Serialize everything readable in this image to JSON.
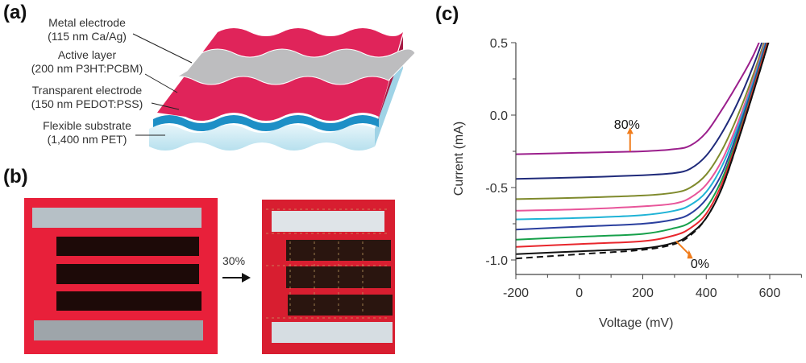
{
  "panels": {
    "a": {
      "label": "(a)",
      "layers": [
        {
          "name": "Metal electrode",
          "detail": "(115 nm Ca/Ag)",
          "color": "#b9b9bb"
        },
        {
          "name": "Active layer",
          "detail": "(200 nm P3HT:PCBM)",
          "color": "#e0245a"
        },
        {
          "name": "Transparent electrode",
          "detail": "(150 nm PEDOT:PSS)",
          "color": "#1d8fc6"
        },
        {
          "name": "Flexible substrate",
          "detail": "(1,400 nm PET)",
          "color": "#c9e9f3"
        }
      ]
    },
    "b": {
      "label": "(b)",
      "strain_label": "30%"
    },
    "c": {
      "label": "(c)"
    }
  },
  "chart_data": {
    "type": "line",
    "xlabel": "Voltage (mV)",
    "ylabel": "Current (mA)",
    "xlim": [
      -200,
      700
    ],
    "ylim": [
      -1.1,
      0.5
    ],
    "xticks": [
      "-200",
      "0",
      "200",
      "400",
      "600"
    ],
    "xtick_values": [
      -200,
      0,
      200,
      400,
      600
    ],
    "yticks": [
      "0.5",
      "0.0",
      "-0.5",
      "-1.0"
    ],
    "ytick_values": [
      0.5,
      0.0,
      -0.5,
      -1.0
    ],
    "grid": false,
    "annotations": [
      {
        "text": "80%",
        "arrow": "up",
        "arrow_color": "#f07c1c"
      },
      {
        "text": "0%",
        "arrow": "down-right",
        "arrow_color": "#f07c1c"
      }
    ],
    "x": [
      -200,
      0,
      200,
      300,
      350,
      400,
      450,
      500,
      550,
      600
    ],
    "series": [
      {
        "color": "#9b1f8c",
        "dash": false,
        "values": [
          -0.27,
          -0.26,
          -0.25,
          -0.235,
          -0.21,
          -0.12,
          0.04,
          0.22,
          0.42,
          0.68
        ]
      },
      {
        "color": "#1f2a7a",
        "dash": false,
        "values": [
          -0.44,
          -0.43,
          -0.415,
          -0.4,
          -0.37,
          -0.28,
          -0.12,
          0.09,
          0.35,
          0.65
        ]
      },
      {
        "color": "#7f8a2c",
        "dash": false,
        "values": [
          -0.58,
          -0.57,
          -0.555,
          -0.535,
          -0.5,
          -0.41,
          -0.24,
          0.0,
          0.29,
          0.62
        ]
      },
      {
        "color": "#e8559a",
        "dash": false,
        "values": [
          -0.66,
          -0.65,
          -0.63,
          -0.61,
          -0.57,
          -0.48,
          -0.31,
          -0.05,
          0.26,
          0.6
        ]
      },
      {
        "color": "#1fb3d6",
        "dash": false,
        "values": [
          -0.72,
          -0.71,
          -0.69,
          -0.66,
          -0.62,
          -0.53,
          -0.35,
          -0.08,
          0.24,
          0.59
        ]
      },
      {
        "color": "#2a3f9e",
        "dash": false,
        "values": [
          -0.79,
          -0.77,
          -0.75,
          -0.72,
          -0.68,
          -0.58,
          -0.4,
          -0.11,
          0.22,
          0.58
        ]
      },
      {
        "color": "#16a04a",
        "dash": false,
        "values": [
          -0.86,
          -0.84,
          -0.82,
          -0.78,
          -0.74,
          -0.64,
          -0.44,
          -0.14,
          0.2,
          0.56
        ]
      },
      {
        "color": "#e8262c",
        "dash": false,
        "values": [
          -0.91,
          -0.89,
          -0.87,
          -0.83,
          -0.78,
          -0.68,
          -0.47,
          -0.16,
          0.19,
          0.55
        ]
      },
      {
        "color": "#111111",
        "dash": false,
        "values": [
          -0.96,
          -0.94,
          -0.92,
          -0.88,
          -0.82,
          -0.71,
          -0.5,
          -0.18,
          0.17,
          0.53
        ]
      },
      {
        "color": "#111111",
        "dash": true,
        "values": [
          -0.99,
          -0.96,
          -0.93,
          -0.89,
          -0.83,
          -0.71,
          -0.5,
          -0.18,
          0.17,
          0.53
        ]
      }
    ]
  }
}
